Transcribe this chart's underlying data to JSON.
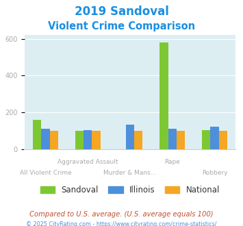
{
  "title_line1": "2019 Sandoval",
  "title_line2": "Violent Crime Comparison",
  "categories": [
    "All Violent Crime",
    "Aggravated Assault",
    "Murder & Mans...",
    "Rape",
    "Robbery"
  ],
  "sandoval": [
    160,
    100,
    0,
    580,
    105
  ],
  "illinois": [
    110,
    105,
    135,
    110,
    122
  ],
  "national": [
    100,
    100,
    100,
    100,
    100
  ],
  "bar_width": 0.2,
  "ylim": [
    0,
    620
  ],
  "yticks": [
    0,
    200,
    400,
    600
  ],
  "color_sandoval": "#7dc832",
  "color_illinois": "#4d8fdb",
  "color_national": "#f5a623",
  "bg_color": "#ddeef3",
  "title_color": "#1a8fe0",
  "axis_label_color": "#aaaaaa",
  "legend_text_color": "#333333",
  "footnote1": "Compared to U.S. average. (U.S. average equals 100)",
  "footnote2": "© 2025 CityRating.com - https://www.cityrating.com/crime-statistics/",
  "footnote1_color": "#c05030",
  "footnote2_color": "#4d8fdb"
}
